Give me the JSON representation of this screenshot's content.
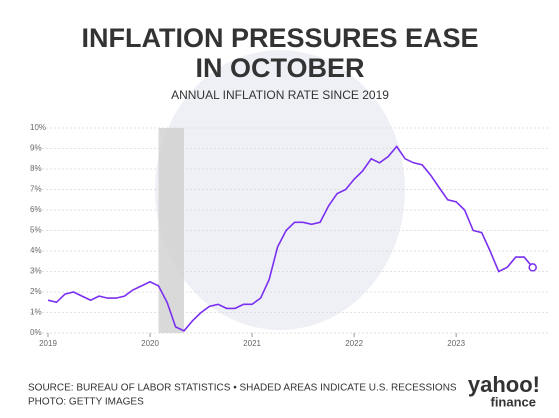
{
  "chart_data": {
    "type": "line",
    "title": [
      "INFLATION PRESSURES EASE",
      "IN OCTOBER"
    ],
    "subtitle": "ANNUAL INFLATION RATE SINCE 2019",
    "source": [
      "SOURCE: BUREAU OF LABOR STATISTICS • SHADED AREAS INDICATE U.S. RECESSIONS",
      "PHOTO: GETTY IMAGES"
    ],
    "logo": [
      "yahoo!",
      "finance"
    ],
    "color": "#7b2ff0",
    "recessions": [
      [
        2020.083,
        2020.333
      ]
    ],
    "x": [
      2019.0,
      2019.083,
      2019.167,
      2019.25,
      2019.333,
      2019.417,
      2019.5,
      2019.583,
      2019.667,
      2019.75,
      2019.833,
      2019.917,
      2020.0,
      2020.083,
      2020.167,
      2020.25,
      2020.333,
      2020.417,
      2020.5,
      2020.583,
      2020.667,
      2020.75,
      2020.833,
      2020.917,
      2021.0,
      2021.083,
      2021.167,
      2021.25,
      2021.333,
      2021.417,
      2021.5,
      2021.583,
      2021.667,
      2021.75,
      2021.833,
      2021.917,
      2022.0,
      2022.083,
      2022.167,
      2022.25,
      2022.333,
      2022.417,
      2022.5,
      2022.583,
      2022.667,
      2022.75,
      2022.833,
      2022.917,
      2023.0,
      2023.083,
      2023.167,
      2023.25,
      2023.333,
      2023.417,
      2023.5,
      2023.583,
      2023.667,
      2023.75
    ],
    "values": [
      1.6,
      1.5,
      1.9,
      2.0,
      1.8,
      1.6,
      1.8,
      1.7,
      1.7,
      1.8,
      2.1,
      2.3,
      2.5,
      2.3,
      1.5,
      0.3,
      0.1,
      0.6,
      1.0,
      1.3,
      1.4,
      1.2,
      1.2,
      1.4,
      1.4,
      1.7,
      2.6,
      4.2,
      5.0,
      5.4,
      5.4,
      5.3,
      5.4,
      6.2,
      6.8,
      7.0,
      7.5,
      7.9,
      8.5,
      8.3,
      8.6,
      9.1,
      8.5,
      8.3,
      8.2,
      7.7,
      7.1,
      6.5,
      6.4,
      6.0,
      5.0,
      4.9,
      4.0,
      3.0,
      3.2,
      3.7,
      3.7,
      3.2
    ],
    "xlim": [
      2019,
      2023.9
    ],
    "xticks": [
      2019,
      2020,
      2021,
      2022,
      2023
    ],
    "ylim": [
      0,
      10
    ],
    "yticks": [
      {
        "value": 0,
        "label": "0%"
      },
      {
        "value": 1,
        "label": "1%"
      },
      {
        "value": 2,
        "label": "2%"
      },
      {
        "value": 3,
        "label": "3%"
      },
      {
        "value": 4,
        "label": "4%"
      },
      {
        "value": 5,
        "label": "5%"
      },
      {
        "value": 6,
        "label": "6%"
      },
      {
        "value": 7,
        "label": "7%"
      },
      {
        "value": 8,
        "label": "8%"
      },
      {
        "value": 9,
        "label": "9%"
      },
      {
        "value": 10,
        "label": "10%"
      }
    ],
    "grid": true
  }
}
